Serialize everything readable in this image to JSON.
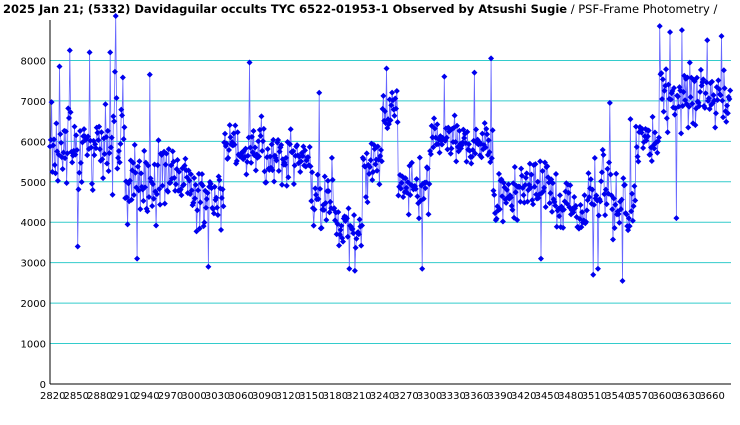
{
  "title": {
    "main": "2025 Jan 21; (5332) Davidaguilar occults TYC 6522-01953-1 Observed by Atsushi Sugie",
    "sub": " / PSF-Frame Photometry / "
  },
  "colors": {
    "grid": "#33cccc",
    "series": "#0000ee",
    "axis": "#000000",
    "background": "#ffffff"
  },
  "chart_data": {
    "type": "scatter",
    "title": "2025 Jan 21; (5332) Davidaguilar occults TYC 6522-01953-1 Observed by Atsushi Sugie / PSF-Frame Photometry /",
    "xlabel": "",
    "ylabel": "",
    "xlim": [
      2820,
      3680
    ],
    "ylim": [
      0,
      9000
    ],
    "grid": true,
    "connected": true,
    "yticks": [
      0,
      1000,
      2000,
      3000,
      4000,
      5000,
      6000,
      7000,
      8000
    ],
    "xtick_labels": [
      "2820",
      "2850",
      "2880",
      "2910",
      "2940",
      "2970",
      "3000",
      "3030",
      "3060",
      "3090",
      "3120",
      "3150",
      "3180",
      "3210",
      "3240",
      "3270",
      "3300",
      "3330",
      "3360",
      "3390",
      "3420",
      "3450",
      "3480",
      "3510",
      "3540",
      "3570",
      "3600",
      "3630",
      "3660"
    ],
    "x_start": 2820,
    "x_step": 1,
    "segments": [
      {
        "from": 2820,
        "to": 2900,
        "mean": 5800,
        "spread": 1300
      },
      {
        "from": 2900,
        "to": 2915,
        "mean": 6200,
        "spread": 1600
      },
      {
        "from": 2915,
        "to": 2960,
        "mean": 5000,
        "spread": 1300
      },
      {
        "from": 2960,
        "to": 3000,
        "mean": 5200,
        "spread": 1100
      },
      {
        "from": 3000,
        "to": 3040,
        "mean": 4600,
        "spread": 1000
      },
      {
        "from": 3040,
        "to": 3090,
        "mean": 5800,
        "spread": 900
      },
      {
        "from": 3090,
        "to": 3150,
        "mean": 5600,
        "spread": 1000
      },
      {
        "from": 3150,
        "to": 3180,
        "mean": 4600,
        "spread": 1100
      },
      {
        "from": 3180,
        "to": 3215,
        "mean": 3900,
        "spread": 700
      },
      {
        "from": 3215,
        "to": 3240,
        "mean": 5400,
        "spread": 1100
      },
      {
        "from": 3240,
        "to": 3260,
        "mean": 6800,
        "spread": 800
      },
      {
        "from": 3260,
        "to": 3300,
        "mean": 4800,
        "spread": 1000
      },
      {
        "from": 3300,
        "to": 3330,
        "mean": 6100,
        "spread": 900
      },
      {
        "from": 3330,
        "to": 3380,
        "mean": 6000,
        "spread": 900
      },
      {
        "from": 3380,
        "to": 3420,
        "mean": 4600,
        "spread": 900
      },
      {
        "from": 3420,
        "to": 3460,
        "mean": 4900,
        "spread": 900
      },
      {
        "from": 3460,
        "to": 3500,
        "mean": 4400,
        "spread": 900
      },
      {
        "from": 3500,
        "to": 3530,
        "mean": 4900,
        "spread": 1300
      },
      {
        "from": 3530,
        "to": 3560,
        "mean": 4400,
        "spread": 1000
      },
      {
        "from": 3560,
        "to": 3590,
        "mean": 6000,
        "spread": 1100
      },
      {
        "from": 3590,
        "to": 3680,
        "mean": 7100,
        "spread": 1100
      }
    ],
    "highlights": [
      {
        "x": 2832,
        "y": 7850
      },
      {
        "x": 2845,
        "y": 8250
      },
      {
        "x": 2855,
        "y": 3400
      },
      {
        "x": 2870,
        "y": 8200
      },
      {
        "x": 2896,
        "y": 8200
      },
      {
        "x": 2903,
        "y": 9100
      },
      {
        "x": 2930,
        "y": 3100
      },
      {
        "x": 2946,
        "y": 7650
      },
      {
        "x": 3020,
        "y": 2900
      },
      {
        "x": 3072,
        "y": 7950
      },
      {
        "x": 3160,
        "y": 7200
      },
      {
        "x": 3198,
        "y": 2850
      },
      {
        "x": 3205,
        "y": 2800
      },
      {
        "x": 3245,
        "y": 7800
      },
      {
        "x": 3290,
        "y": 2850
      },
      {
        "x": 3318,
        "y": 7600
      },
      {
        "x": 3356,
        "y": 7700
      },
      {
        "x": 3377,
        "y": 8050
      },
      {
        "x": 3440,
        "y": 3100
      },
      {
        "x": 3506,
        "y": 2700
      },
      {
        "x": 3512,
        "y": 2850
      },
      {
        "x": 3527,
        "y": 6950
      },
      {
        "x": 3543,
        "y": 2550
      },
      {
        "x": 3553,
        "y": 6550
      },
      {
        "x": 3590,
        "y": 8850
      },
      {
        "x": 3603,
        "y": 8700
      },
      {
        "x": 3611,
        "y": 4100
      },
      {
        "x": 3618,
        "y": 8750
      },
      {
        "x": 3650,
        "y": 8500
      },
      {
        "x": 3668,
        "y": 8600
      }
    ]
  }
}
